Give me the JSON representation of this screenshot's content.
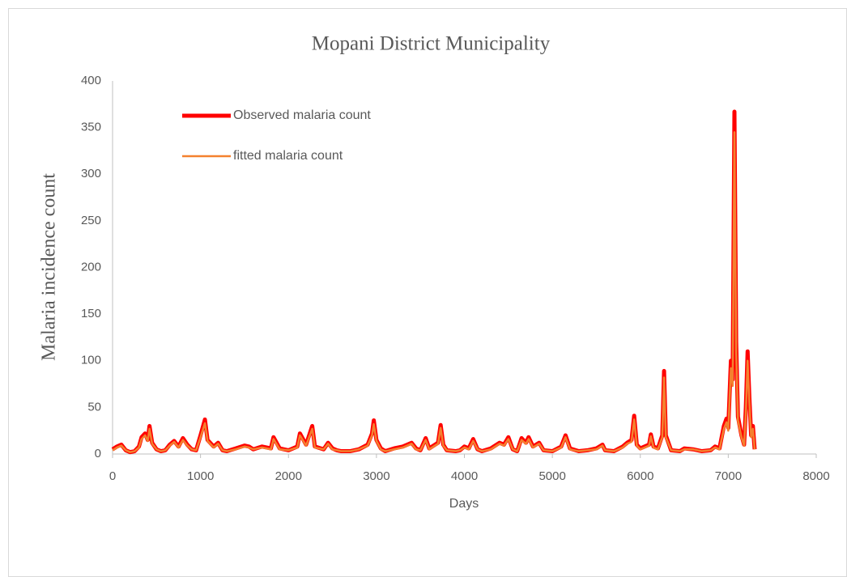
{
  "chart_data": {
    "type": "line",
    "title": "Mopani District Municipality",
    "x_label": "Days",
    "y_label": "Malaria incidence count",
    "xlim": [
      0,
      8000
    ],
    "ylim": [
      0,
      400
    ],
    "xticks": [
      0,
      1000,
      2000,
      3000,
      4000,
      5000,
      6000,
      7000,
      8000
    ],
    "yticks": [
      0,
      50,
      100,
      150,
      200,
      250,
      300,
      350,
      400
    ],
    "grid": false,
    "legend": "upper-left",
    "x": [
      0,
      50,
      100,
      150,
      200,
      250,
      300,
      330,
      370,
      400,
      420,
      450,
      500,
      550,
      600,
      650,
      700,
      750,
      800,
      850,
      900,
      950,
      1000,
      1050,
      1080,
      1150,
      1200,
      1250,
      1300,
      1400,
      1500,
      1550,
      1600,
      1700,
      1800,
      1830,
      1900,
      2000,
      2100,
      2130,
      2200,
      2270,
      2300,
      2400,
      2450,
      2500,
      2550,
      2600,
      2700,
      2800,
      2900,
      2950,
      2970,
      3000,
      3050,
      3100,
      3200,
      3300,
      3400,
      3450,
      3500,
      3560,
      3600,
      3700,
      3730,
      3760,
      3800,
      3900,
      3950,
      4000,
      4050,
      4100,
      4150,
      4200,
      4300,
      4400,
      4450,
      4500,
      4550,
      4600,
      4650,
      4700,
      4730,
      4780,
      4850,
      4900,
      5000,
      5100,
      5150,
      5200,
      5300,
      5400,
      5500,
      5570,
      5600,
      5700,
      5800,
      5850,
      5900,
      5930,
      5960,
      6000,
      6100,
      6120,
      6150,
      6200,
      6250,
      6270,
      6290,
      6350,
      6450,
      6500,
      6600,
      6700,
      6800,
      6850,
      6900,
      6950,
      6980,
      7000,
      7030,
      7050,
      7070,
      7090,
      7110,
      7150,
      7180,
      7200,
      7220,
      7240,
      7260,
      7280,
      7300
    ],
    "series": [
      {
        "name": "Observed malaria count",
        "color": "#ff0000",
        "width": 5,
        "values": [
          5,
          8,
          10,
          4,
          2,
          3,
          8,
          18,
          22,
          15,
          30,
          12,
          5,
          3,
          4,
          10,
          14,
          8,
          17,
          10,
          5,
          4,
          20,
          37,
          15,
          8,
          12,
          4,
          3,
          6,
          9,
          8,
          5,
          8,
          6,
          18,
          6,
          4,
          8,
          22,
          10,
          30,
          8,
          5,
          12,
          6,
          4,
          3,
          3,
          5,
          10,
          22,
          36,
          15,
          6,
          3,
          6,
          8,
          12,
          6,
          4,
          17,
          6,
          12,
          31,
          10,
          4,
          3,
          4,
          8,
          6,
          16,
          5,
          3,
          6,
          12,
          10,
          18,
          5,
          3,
          17,
          12,
          18,
          8,
          12,
          4,
          3,
          8,
          20,
          6,
          3,
          4,
          6,
          10,
          4,
          3,
          8,
          12,
          15,
          41,
          10,
          6,
          10,
          21,
          8,
          6,
          20,
          89,
          20,
          4,
          3,
          6,
          5,
          3,
          4,
          8,
          6,
          30,
          38,
          28,
          100,
          80,
          367,
          120,
          40,
          20,
          10,
          50,
          110,
          60,
          20,
          30,
          5
        ]
      },
      {
        "name": "fitted malaria count",
        "color": "#f4812f",
        "width": 2.5,
        "values": [
          4,
          7,
          9,
          4,
          2,
          3,
          7,
          16,
          20,
          14,
          27,
          11,
          5,
          3,
          4,
          9,
          13,
          7,
          15,
          9,
          5,
          4,
          18,
          33,
          14,
          7,
          11,
          4,
          3,
          5,
          8,
          7,
          5,
          7,
          5,
          16,
          5,
          4,
          7,
          20,
          9,
          27,
          7,
          5,
          11,
          5,
          4,
          3,
          3,
          5,
          9,
          20,
          32,
          14,
          5,
          3,
          5,
          7,
          11,
          5,
          4,
          15,
          5,
          11,
          28,
          9,
          4,
          3,
          4,
          7,
          5,
          14,
          5,
          3,
          5,
          11,
          9,
          16,
          5,
          3,
          15,
          11,
          16,
          7,
          11,
          4,
          3,
          7,
          18,
          5,
          3,
          4,
          5,
          9,
          4,
          3,
          7,
          11,
          13,
          37,
          9,
          5,
          9,
          19,
          7,
          5,
          18,
          82,
          18,
          4,
          3,
          5,
          5,
          3,
          4,
          7,
          5,
          27,
          34,
          25,
          92,
          73,
          345,
          110,
          36,
          18,
          9,
          45,
          100,
          55,
          18,
          27,
          5
        ]
      }
    ]
  }
}
